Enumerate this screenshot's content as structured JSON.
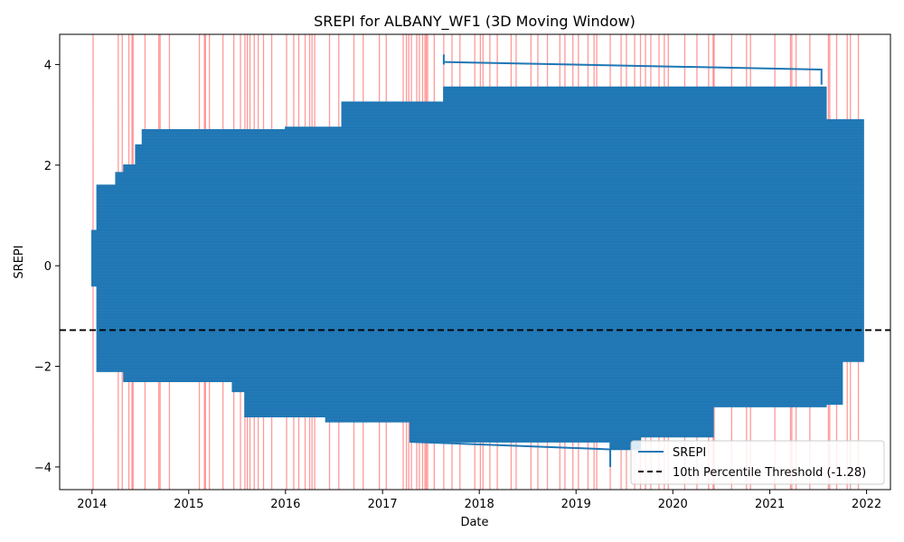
{
  "chart_data": {
    "type": "line",
    "title": "SREPI for ALBANY_WF1 (3D Moving Window)",
    "xlabel": "Date",
    "ylabel": "SREPI",
    "xlim": [
      "2013-09-01",
      "2022-04-01"
    ],
    "ylim": [
      -4.45,
      4.6
    ],
    "x_ticks": [
      "2014",
      "2015",
      "2016",
      "2017",
      "2018",
      "2019",
      "2020",
      "2021",
      "2022"
    ],
    "y_ticks": [
      -4,
      -2,
      0,
      2,
      4
    ],
    "grid": false,
    "legend_placement": "lower-right",
    "series": [
      {
        "name": "SREPI",
        "color": "#1f77b4",
        "envelope": [
          {
            "date": "2014-01-01",
            "low": -0.4,
            "high": 0.7
          },
          {
            "date": "2014-01-20",
            "low": -2.1,
            "high": 1.6
          },
          {
            "date": "2014-04-01",
            "low": -2.1,
            "high": 1.85
          },
          {
            "date": "2014-05-01",
            "low": -2.3,
            "high": 2.0
          },
          {
            "date": "2014-06-15",
            "low": -2.3,
            "high": 2.4
          },
          {
            "date": "2014-07-10",
            "low": -2.3,
            "high": 2.7
          },
          {
            "date": "2015-06-15",
            "low": -2.5,
            "high": 2.7
          },
          {
            "date": "2015-08-01",
            "low": -3.0,
            "high": 2.7
          },
          {
            "date": "2016-01-01",
            "low": -3.0,
            "high": 2.75
          },
          {
            "date": "2016-06-01",
            "low": -3.1,
            "high": 2.75
          },
          {
            "date": "2016-08-01",
            "low": -3.1,
            "high": 3.25
          },
          {
            "date": "2017-04-15",
            "low": -3.5,
            "high": 3.25
          },
          {
            "date": "2017-08-20",
            "low": -3.5,
            "high": 3.55
          },
          {
            "date": "2018-06-01",
            "low": -3.5,
            "high": 3.55
          },
          {
            "date": "2019-05-10",
            "low": -3.65,
            "high": 3.55
          },
          {
            "date": "2019-09-01",
            "low": -3.4,
            "high": 3.55
          },
          {
            "date": "2020-06-01",
            "low": -2.8,
            "high": 3.55
          },
          {
            "date": "2021-07-15",
            "low": -2.8,
            "high": 3.55
          },
          {
            "date": "2021-08-01",
            "low": -2.75,
            "high": 2.9
          },
          {
            "date": "2021-10-01",
            "low": -1.9,
            "high": 2.9
          },
          {
            "date": "2021-12-20",
            "low": -1.9,
            "high": 2.9
          }
        ],
        "highlights": [
          {
            "x1": "2017-08-20",
            "x2": "2021-07-15",
            "y": 3.9,
            "start_y": 4.05,
            "label": "upper spike"
          },
          {
            "x1": "2017-04-15",
            "x2": "2019-05-10",
            "y": -3.5,
            "end_y": -3.65,
            "label": "lower spike"
          }
        ],
        "spikes": [
          {
            "date": "2017-08-20",
            "value": 4.2
          },
          {
            "date": "2019-05-10",
            "value": -4.0
          }
        ]
      },
      {
        "name": "10th Percentile Threshold (-1.28)",
        "color": "#000000",
        "style": "dashed",
        "value": -1.28
      }
    ],
    "drought_markers": {
      "color": "#ff0000",
      "dates": [
        "2014-01-05",
        "2014-04-10",
        "2014-04-25",
        "2014-05-20",
        "2014-06-01",
        "2014-06-05",
        "2014-07-20",
        "2014-09-10",
        "2014-09-15",
        "2014-10-20",
        "2015-02-10",
        "2015-03-01",
        "2015-03-05",
        "2015-03-20",
        "2015-05-10",
        "2015-06-20",
        "2015-07-15",
        "2015-08-01",
        "2015-08-10",
        "2015-08-20",
        "2015-09-05",
        "2015-09-20",
        "2015-10-10",
        "2015-11-10",
        "2016-01-05",
        "2016-02-01",
        "2016-02-20",
        "2016-03-15",
        "2016-04-01",
        "2016-04-10",
        "2016-04-20",
        "2016-06-15",
        "2016-07-20",
        "2016-09-15",
        "2016-10-20",
        "2016-12-20",
        "2017-01-15",
        "2017-03-20",
        "2017-04-01",
        "2017-04-10",
        "2017-04-20",
        "2017-05-10",
        "2017-05-20",
        "2017-06-01",
        "2017-06-10",
        "2017-06-15",
        "2017-06-20",
        "2017-07-15",
        "2017-08-20",
        "2017-09-20",
        "2017-10-20",
        "2017-12-15",
        "2018-01-05",
        "2018-01-15",
        "2018-02-10",
        "2018-03-10",
        "2018-05-01",
        "2018-05-20",
        "2018-07-15",
        "2018-08-10",
        "2018-09-15",
        "2018-11-01",
        "2018-11-20",
        "2018-12-20",
        "2019-01-10",
        "2019-02-15",
        "2019-03-10",
        "2019-03-20",
        "2019-05-10",
        "2019-06-20",
        "2019-07-10",
        "2019-08-10",
        "2019-09-01",
        "2019-09-20",
        "2019-10-10",
        "2019-11-10",
        "2019-11-30",
        "2019-12-15",
        "2020-02-15",
        "2020-04-01",
        "2020-05-15",
        "2020-06-01",
        "2020-06-05",
        "2020-08-10",
        "2020-10-05",
        "2020-10-20",
        "2021-01-20",
        "2021-03-20",
        "2021-03-25",
        "2021-04-10",
        "2021-06-01",
        "2021-08-10",
        "2021-08-15",
        "2021-09-10",
        "2021-10-20",
        "2021-11-01",
        "2021-12-01"
      ]
    }
  }
}
